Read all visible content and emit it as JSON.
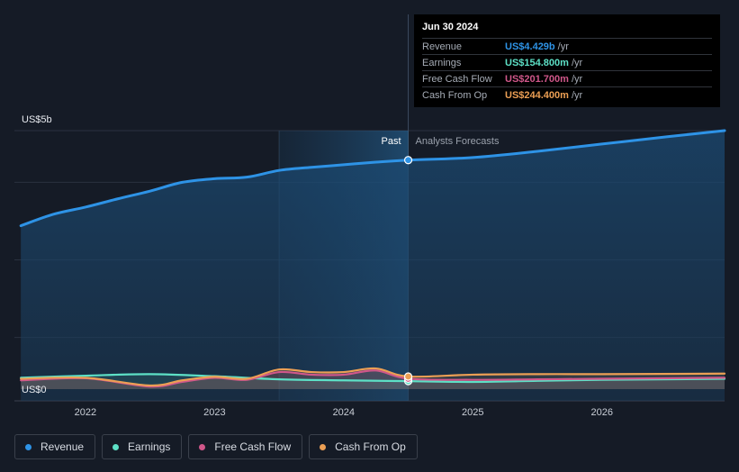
{
  "chart_data": {
    "type": "line",
    "title": "",
    "y_axis": {
      "top_label": "US$5b",
      "bottom_label": "US$0",
      "ylim": [
        0,
        5.0
      ],
      "unit": "US$ billions"
    },
    "x_axis": {
      "tick_labels": [
        "2022",
        "2023",
        "2024",
        "2025",
        "2026"
      ],
      "xlim": [
        2021.45,
        2026.95
      ]
    },
    "past_label": "Past",
    "forecast_label": "Analysts Forecasts",
    "divider_x": 2024.5,
    "highlight_start_x": 2023.5,
    "series": [
      {
        "name": "Revenue",
        "color": "#2e93e6",
        "fill": true,
        "x": [
          2021.5,
          2021.75,
          2022.0,
          2022.25,
          2022.5,
          2022.75,
          2023.0,
          2023.25,
          2023.5,
          2023.75,
          2024.0,
          2024.25,
          2024.5,
          2025.0,
          2025.5,
          2026.0,
          2026.5,
          2026.95
        ],
        "values": [
          3.16,
          3.38,
          3.52,
          3.68,
          3.83,
          4.0,
          4.07,
          4.1,
          4.23,
          4.29,
          4.34,
          4.39,
          4.429,
          4.48,
          4.6,
          4.74,
          4.88,
          5.0
        ]
      },
      {
        "name": "Earnings",
        "color": "#5de0c6",
        "x": [
          2021.5,
          2022.0,
          2022.5,
          2023.0,
          2023.5,
          2024.0,
          2024.5,
          2025.0,
          2025.5,
          2026.0,
          2026.95
        ],
        "values": [
          0.22,
          0.26,
          0.29,
          0.25,
          0.19,
          0.17,
          0.1548,
          0.14,
          0.16,
          0.18,
          0.2
        ]
      },
      {
        "name": "Free Cash Flow",
        "color": "#d0578a",
        "x": [
          2021.5,
          2022.0,
          2022.5,
          2022.75,
          2023.0,
          2023.25,
          2023.5,
          2023.75,
          2024.0,
          2024.25,
          2024.5,
          2025.0,
          2025.5,
          2026.0,
          2026.95
        ],
        "values": [
          0.17,
          0.21,
          0.05,
          0.14,
          0.22,
          0.18,
          0.33,
          0.28,
          0.28,
          0.36,
          0.2017,
          0.18,
          0.19,
          0.2,
          0.22
        ]
      },
      {
        "name": "Cash From Op",
        "color": "#ec9f54",
        "x": [
          2021.5,
          2022.0,
          2022.5,
          2022.75,
          2023.0,
          2023.25,
          2023.5,
          2023.75,
          2024.0,
          2024.25,
          2024.5,
          2025.0,
          2025.5,
          2026.0,
          2026.95
        ],
        "values": [
          0.2,
          0.22,
          0.07,
          0.17,
          0.24,
          0.2,
          0.38,
          0.33,
          0.33,
          0.4,
          0.2444,
          0.28,
          0.29,
          0.29,
          0.3
        ]
      }
    ]
  },
  "tooltip": {
    "date": "Jun 30 2024",
    "rows": [
      {
        "name": "Revenue",
        "value": "US$4.429b",
        "unit": "/yr",
        "color": "#2e93e6"
      },
      {
        "name": "Earnings",
        "value": "US$154.800m",
        "unit": "/yr",
        "color": "#5de0c6"
      },
      {
        "name": "Free Cash Flow",
        "value": "US$201.700m",
        "unit": "/yr",
        "color": "#d0578a"
      },
      {
        "name": "Cash From Op",
        "value": "US$244.400m",
        "unit": "/yr",
        "color": "#ec9f54"
      }
    ]
  },
  "legend": [
    {
      "label": "Revenue",
      "color": "#2e93e6"
    },
    {
      "label": "Earnings",
      "color": "#5de0c6"
    },
    {
      "label": "Free Cash Flow",
      "color": "#d0578a"
    },
    {
      "label": "Cash From Op",
      "color": "#ec9f54"
    }
  ]
}
